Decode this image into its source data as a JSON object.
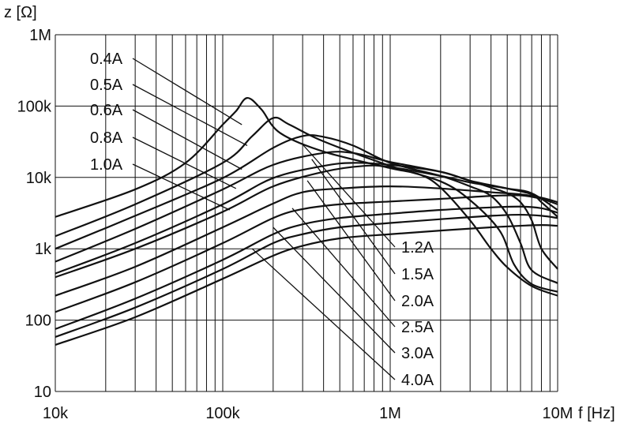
{
  "chart_data": {
    "type": "line",
    "title": "",
    "xlabel": "f [Hz]",
    "ylabel": "z [Ω]",
    "xscale": "log",
    "yscale": "log",
    "xlim": [
      10000,
      10000000
    ],
    "ylim": [
      10,
      1000000
    ],
    "grid": true,
    "x_ticks": [
      {
        "value": 10000,
        "label": "10k"
      },
      {
        "value": 100000,
        "label": "100k"
      },
      {
        "value": 1000000,
        "label": "1M"
      },
      {
        "value": 10000000,
        "label": "10M"
      }
    ],
    "y_ticks": [
      {
        "value": 10,
        "label": "10"
      },
      {
        "value": 100,
        "label": "100"
      },
      {
        "value": 1000,
        "label": "1k"
      },
      {
        "value": 10000,
        "label": "10k"
      },
      {
        "value": 100000,
        "label": "100k"
      },
      {
        "value": 1000000,
        "label": "1M"
      }
    ],
    "series": [
      {
        "name": "0.4A",
        "x": [
          10000,
          30000,
          60000,
          100000,
          120000,
          140000,
          170000,
          220000,
          400000,
          1000000,
          1500000,
          2000000,
          3000000,
          4000000,
          5000000,
          7000000,
          10000000
        ],
        "y": [
          2800,
          6800,
          16000,
          55000,
          85000,
          130000,
          90000,
          42000,
          23000,
          13500,
          11000,
          7200,
          2500,
          1000,
          550,
          300,
          220
        ]
      },
      {
        "name": "0.5A",
        "x": [
          10000,
          30000,
          100000,
          150000,
          200000,
          250000,
          400000,
          1000000,
          2000000,
          3000000,
          4500000,
          5500000,
          7000000,
          10000000
        ],
        "y": [
          1500,
          4200,
          16000,
          38000,
          68000,
          55000,
          32000,
          14500,
          8800,
          4800,
          1800,
          600,
          320,
          250
        ]
      },
      {
        "name": "0.6A",
        "x": [
          10000,
          30000,
          100000,
          200000,
          300000,
          400000,
          600000,
          1000000,
          2000000,
          3000000,
          4000000,
          5000000,
          6000000,
          7000000,
          10000000
        ],
        "y": [
          1000,
          2900,
          9800,
          26000,
          38000,
          37000,
          28000,
          16000,
          10500,
          7500,
          5500,
          3000,
          1200,
          500,
          330
        ]
      },
      {
        "name": "0.8A",
        "x": [
          10000,
          30000,
          100000,
          200000,
          400000,
          600000,
          1000000,
          2000000,
          3000000,
          4000000,
          5000000,
          6000000,
          7000000,
          8000000,
          10000000
        ],
        "y": [
          660,
          1900,
          6800,
          15000,
          22000,
          22000,
          16500,
          12000,
          9000,
          7200,
          6000,
          4500,
          2500,
          1000,
          520
        ]
      },
      {
        "name": "1.0A",
        "x": [
          10000,
          30000,
          100000,
          200000,
          400000,
          600000,
          1000000,
          2000000,
          3000000,
          5000000,
          7000000,
          8000000,
          10000000
        ],
        "y": [
          450,
          1200,
          4200,
          9800,
          14500,
          16000,
          15000,
          12000,
          9000,
          7000,
          5800,
          4500,
          2800
        ]
      },
      {
        "name": "1.2A",
        "x": [
          10000,
          30000,
          100000,
          200000,
          400000,
          700000,
          1000000,
          2000000,
          3000000,
          5000000,
          7000000,
          10000000
        ],
        "y": [
          400,
          1000,
          3300,
          7500,
          12000,
          14500,
          14000,
          10500,
          8500,
          7000,
          6000,
          3500
        ]
      },
      {
        "name": "1.5A",
        "x": [
          10000,
          30000,
          100000,
          200000,
          300000,
          500000,
          1000000,
          2000000,
          4000000,
          6000000,
          8000000,
          10000000
        ],
        "y": [
          220,
          560,
          2000,
          4300,
          6200,
          7000,
          7500,
          7000,
          6200,
          5800,
          5200,
          4500
        ]
      },
      {
        "name": "2.0A",
        "x": [
          10000,
          30000,
          100000,
          200000,
          300000,
          500000,
          1000000,
          2000000,
          4000000,
          6000000,
          8000000,
          10000000
        ],
        "y": [
          130,
          340,
          1200,
          2700,
          3600,
          4200,
          4600,
          5000,
          5500,
          5600,
          5000,
          4200
        ]
      },
      {
        "name": "2.5A",
        "x": [
          10000,
          30000,
          100000,
          200000,
          300000,
          500000,
          1000000,
          2000000,
          4000000,
          6000000,
          8000000,
          10000000
        ],
        "y": [
          75,
          200,
          700,
          1600,
          2200,
          2700,
          3100,
          3500,
          3800,
          3900,
          3700,
          3200
        ]
      },
      {
        "name": "3.0A",
        "x": [
          10000,
          30000,
          100000,
          200000,
          300000,
          500000,
          1000000,
          2000000,
          4000000,
          6000000,
          8000000,
          10000000
        ],
        "y": [
          58,
          150,
          520,
          1200,
          1600,
          2000,
          2300,
          2600,
          2900,
          3000,
          2900,
          2700
        ]
      },
      {
        "name": "4.0A",
        "x": [
          10000,
          30000,
          100000,
          200000,
          300000,
          500000,
          1000000,
          2000000,
          4000000,
          6000000,
          8000000,
          10000000
        ],
        "y": [
          45,
          110,
          380,
          800,
          1100,
          1400,
          1600,
          1800,
          2000,
          2100,
          2150,
          2100
        ]
      }
    ],
    "annotations": {
      "left": [
        {
          "label": "0.4A",
          "target_x": 130000,
          "target_y": 55000
        },
        {
          "label": "0.5A",
          "target_x": 140000,
          "target_y": 28000
        },
        {
          "label": "0.6A",
          "target_x": 130000,
          "target_y": 13000
        },
        {
          "label": "0.8A",
          "target_x": 120000,
          "target_y": 7000
        },
        {
          "label": "1.0A",
          "target_x": 110000,
          "target_y": 3500
        }
      ],
      "right": [
        {
          "label": "1.2A",
          "target_x": 300000,
          "target_y": 29000
        },
        {
          "label": "1.5A",
          "target_x": 340000,
          "target_y": 18000
        },
        {
          "label": "2.0A",
          "target_x": 320000,
          "target_y": 9000
        },
        {
          "label": "2.5A",
          "target_x": 260000,
          "target_y": 3700
        },
        {
          "label": "3.0A",
          "target_x": 200000,
          "target_y": 2000
        },
        {
          "label": "4.0A",
          "target_x": 150000,
          "target_y": 1000
        }
      ]
    }
  }
}
